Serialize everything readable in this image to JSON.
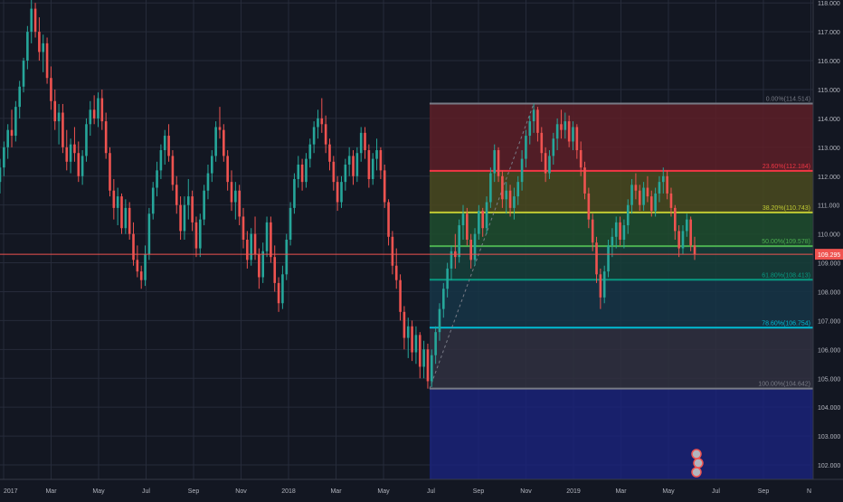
{
  "chart_data": {
    "type": "candlestick",
    "title": "",
    "xlabel": "",
    "ylabel": "",
    "ylim": [
      101.5,
      118.1
    ],
    "x_ticks": [
      "2017",
      "Mar",
      "May",
      "Jul",
      "Sep",
      "Nov",
      "2018",
      "Mar",
      "May",
      "Jul",
      "Sep",
      "Nov",
      "2019",
      "Mar",
      "May",
      "Jul",
      "Sep",
      "N"
    ],
    "y_ticks": [
      "118.000",
      "117.000",
      "116.000",
      "115.000",
      "114.000",
      "113.000",
      "112.000",
      "111.000",
      "110.000",
      "109.000",
      "108.000",
      "107.000",
      "106.000",
      "105.000",
      "104.000",
      "103.000",
      "102.000"
    ],
    "last_price": {
      "value": 109.295,
      "label": "109.295"
    },
    "grid": true,
    "colors": {
      "background": "#131722",
      "grid": "#262b3a",
      "up": "#26a69a",
      "down": "#ef5350",
      "axis_text": "#b2b5be",
      "price_line": "#ef5350"
    },
    "fibonacci": {
      "levels": [
        {
          "label": "0.00%(114.514)",
          "ratio": 0,
          "price": 114.514,
          "color": "#787b86"
        },
        {
          "label": "23.60%(112.184)",
          "ratio": 0.236,
          "price": 112.184,
          "color": "#f23645"
        },
        {
          "label": "38.20%(110.743)",
          "ratio": 0.382,
          "price": 110.743,
          "color": "#c0ca33"
        },
        {
          "label": "50.00%(109.578)",
          "ratio": 0.5,
          "price": 109.578,
          "color": "#4caf50"
        },
        {
          "label": "61.80%(108.413)",
          "ratio": 0.618,
          "price": 108.413,
          "color": "#089981"
        },
        {
          "label": "78.60%(106.754)",
          "ratio": 0.786,
          "price": 106.754,
          "color": "#00bcd4"
        },
        {
          "label": "100.00%(104.642)",
          "ratio": 1,
          "price": 104.642,
          "color": "#787b86"
        }
      ],
      "extension_fill_color": "#1a237e",
      "zone_colors": [
        "#5d1f27",
        "#4a4a1f",
        "#1f4d2e",
        "#163f3a",
        "#163547",
        "#303040"
      ]
    },
    "series": {
      "ohlc": [
        [
          111.8,
          112.6,
          111.4,
          112.3
        ],
        [
          112.3,
          113.2,
          112.0,
          113.0
        ],
        [
          113.0,
          113.8,
          112.6,
          113.6
        ],
        [
          113.6,
          114.3,
          113.0,
          113.4
        ],
        [
          113.4,
          114.6,
          113.2,
          114.4
        ],
        [
          114.4,
          115.3,
          114.0,
          115.1
        ],
        [
          115.1,
          116.1,
          114.9,
          116.0
        ],
        [
          116.0,
          117.2,
          115.7,
          117.0
        ],
        [
          117.0,
          118.1,
          116.6,
          117.8
        ],
        [
          117.8,
          118.0,
          116.8,
          117.0
        ],
        [
          117.0,
          117.5,
          116.0,
          116.3
        ],
        [
          116.3,
          116.9,
          115.6,
          116.6
        ],
        [
          116.6,
          116.8,
          115.2,
          115.4
        ],
        [
          115.4,
          115.8,
          114.3,
          114.6
        ],
        [
          114.6,
          115.0,
          113.6,
          113.9
        ],
        [
          113.9,
          114.5,
          113.1,
          114.2
        ],
        [
          114.2,
          114.5,
          112.8,
          113.0
        ],
        [
          113.0,
          113.6,
          112.2,
          112.5
        ],
        [
          112.5,
          113.3,
          112.1,
          113.1
        ],
        [
          113.1,
          113.7,
          112.5,
          112.8
        ],
        [
          112.8,
          113.2,
          111.8,
          112.0
        ],
        [
          112.0,
          112.9,
          111.7,
          112.7
        ],
        [
          112.7,
          114.0,
          112.5,
          113.8
        ],
        [
          113.8,
          114.6,
          113.4,
          114.3
        ],
        [
          114.3,
          114.8,
          113.8,
          114.0
        ],
        [
          114.0,
          114.9,
          113.7,
          114.7
        ],
        [
          114.7,
          115.0,
          113.6,
          113.9
        ],
        [
          113.9,
          114.2,
          112.6,
          112.8
        ],
        [
          112.8,
          113.0,
          111.3,
          111.5
        ],
        [
          111.5,
          111.9,
          110.5,
          110.9
        ],
        [
          110.9,
          111.6,
          110.3,
          111.3
        ],
        [
          111.3,
          111.4,
          110.0,
          110.2
        ],
        [
          110.2,
          111.2,
          110.0,
          110.9
        ],
        [
          110.9,
          111.1,
          109.8,
          110.0
        ],
        [
          110.0,
          110.4,
          108.9,
          109.1
        ],
        [
          109.1,
          109.6,
          108.5,
          108.7
        ],
        [
          108.7,
          108.9,
          108.1,
          108.4
        ],
        [
          108.4,
          109.6,
          108.2,
          109.3
        ],
        [
          109.3,
          110.9,
          109.1,
          110.7
        ],
        [
          110.7,
          111.8,
          110.5,
          111.6
        ],
        [
          111.6,
          112.5,
          111.3,
          112.2
        ],
        [
          112.2,
          113.1,
          111.9,
          112.9
        ],
        [
          112.9,
          113.6,
          112.4,
          113.4
        ],
        [
          113.4,
          113.8,
          112.5,
          112.7
        ],
        [
          112.7,
          112.9,
          111.5,
          111.7
        ],
        [
          111.7,
          112.0,
          110.7,
          111.0
        ],
        [
          111.0,
          111.3,
          109.8,
          110.1
        ],
        [
          110.1,
          111.3,
          109.8,
          111.0
        ],
        [
          111.0,
          111.9,
          110.5,
          111.3
        ],
        [
          111.3,
          111.5,
          110.1,
          110.4
        ],
        [
          110.4,
          110.6,
          109.2,
          109.5
        ],
        [
          109.5,
          110.7,
          109.2,
          110.5
        ],
        [
          110.5,
          111.7,
          110.3,
          111.5
        ],
        [
          111.5,
          112.4,
          111.2,
          112.1
        ],
        [
          112.1,
          112.9,
          111.8,
          112.7
        ],
        [
          112.7,
          113.9,
          112.5,
          113.7
        ],
        [
          113.7,
          114.4,
          113.3,
          113.6
        ],
        [
          113.6,
          113.8,
          112.5,
          112.7
        ],
        [
          112.7,
          112.9,
          111.5,
          111.8
        ],
        [
          111.8,
          112.2,
          110.8,
          111.1
        ],
        [
          111.1,
          111.8,
          110.5,
          111.5
        ],
        [
          111.5,
          111.7,
          110.3,
          110.6
        ],
        [
          110.6,
          110.9,
          109.5,
          109.8
        ],
        [
          109.8,
          110.1,
          108.8,
          109.1
        ],
        [
          109.1,
          110.2,
          108.9,
          110.0
        ],
        [
          110.0,
          110.6,
          109.1,
          109.3
        ],
        [
          109.3,
          109.5,
          108.1,
          108.5
        ],
        [
          108.5,
          109.7,
          108.3,
          109.4
        ],
        [
          109.4,
          110.6,
          109.2,
          110.4
        ],
        [
          110.4,
          110.6,
          109.0,
          109.2
        ],
        [
          109.2,
          109.6,
          108.0,
          108.3
        ],
        [
          108.3,
          108.5,
          107.3,
          107.6
        ],
        [
          107.6,
          108.9,
          107.4,
          108.6
        ],
        [
          108.6,
          110.0,
          108.4,
          109.8
        ],
        [
          109.8,
          111.1,
          109.6,
          110.9
        ],
        [
          110.9,
          112.1,
          110.7,
          111.9
        ],
        [
          111.9,
          112.7,
          111.6,
          112.4
        ],
        [
          112.4,
          112.6,
          111.5,
          111.8
        ],
        [
          111.8,
          112.8,
          111.6,
          112.6
        ],
        [
          112.6,
          113.3,
          112.3,
          113.1
        ],
        [
          113.1,
          113.9,
          112.8,
          113.7
        ],
        [
          113.7,
          114.3,
          113.3,
          114.0
        ],
        [
          114.0,
          114.7,
          113.5,
          113.8
        ],
        [
          113.8,
          114.1,
          112.8,
          113.1
        ],
        [
          113.1,
          113.3,
          112.2,
          112.5
        ],
        [
          112.5,
          112.7,
          111.5,
          111.8
        ],
        [
          111.8,
          112.0,
          110.8,
          111.1
        ],
        [
          111.1,
          112.0,
          110.9,
          111.8
        ],
        [
          111.8,
          112.6,
          111.5,
          112.4
        ],
        [
          112.4,
          113.0,
          112.0,
          112.7
        ],
        [
          112.7,
          112.9,
          111.7,
          112.0
        ],
        [
          112.0,
          113.0,
          111.8,
          112.8
        ],
        [
          112.8,
          113.7,
          112.5,
          113.5
        ],
        [
          113.5,
          113.7,
          112.6,
          112.9
        ],
        [
          112.9,
          113.1,
          111.6,
          111.9
        ],
        [
          111.9,
          112.8,
          111.7,
          112.6
        ],
        [
          112.6,
          113.3,
          112.2,
          112.9
        ],
        [
          112.9,
          113.0,
          111.9,
          112.2
        ],
        [
          112.2,
          112.4,
          110.9,
          111.1
        ],
        [
          111.1,
          111.2,
          109.6,
          109.9
        ],
        [
          109.9,
          110.1,
          108.6,
          108.9
        ],
        [
          108.9,
          109.5,
          108.1,
          108.4
        ],
        [
          108.4,
          108.6,
          107.0,
          107.3
        ],
        [
          107.3,
          107.5,
          106.0,
          106.4
        ],
        [
          106.4,
          107.1,
          105.7,
          106.8
        ],
        [
          106.8,
          107.0,
          105.6,
          105.9
        ],
        [
          105.9,
          106.8,
          105.5,
          106.5
        ],
        [
          106.5,
          106.6,
          105.0,
          105.4
        ],
        [
          105.4,
          106.3,
          105.0,
          106.0
        ],
        [
          106.0,
          106.2,
          104.642,
          104.9
        ],
        [
          104.9,
          106.0,
          104.7,
          105.8
        ],
        [
          105.8,
          106.8,
          105.5,
          106.6
        ],
        [
          106.6,
          107.6,
          106.3,
          107.4
        ],
        [
          107.4,
          108.3,
          107.1,
          108.1
        ],
        [
          108.1,
          109.0,
          107.8,
          108.8
        ],
        [
          108.8,
          109.6,
          108.4,
          109.4
        ],
        [
          109.4,
          110.0,
          108.8,
          109.2
        ],
        [
          109.2,
          110.5,
          109.0,
          110.3
        ],
        [
          110.3,
          111.0,
          109.8,
          110.7
        ],
        [
          110.7,
          110.9,
          109.6,
          109.8
        ],
        [
          109.8,
          110.0,
          108.8,
          109.1
        ],
        [
          109.1,
          110.2,
          108.9,
          110.0
        ],
        [
          110.0,
          111.0,
          109.8,
          110.8
        ],
        [
          110.8,
          110.9,
          109.9,
          110.2
        ],
        [
          110.2,
          111.3,
          110.0,
          111.1
        ],
        [
          111.1,
          112.3,
          110.9,
          112.1
        ],
        [
          112.1,
          113.1,
          111.8,
          112.9
        ],
        [
          112.9,
          113.0,
          111.8,
          112.0
        ],
        [
          112.0,
          112.2,
          110.9,
          111.2
        ],
        [
          111.2,
          111.8,
          110.7,
          111.5
        ],
        [
          111.5,
          111.7,
          110.6,
          110.9
        ],
        [
          110.9,
          111.6,
          110.5,
          111.3
        ],
        [
          111.3,
          112.0,
          111.0,
          111.8
        ],
        [
          111.8,
          112.9,
          111.5,
          112.6
        ],
        [
          112.6,
          113.6,
          112.3,
          113.4
        ],
        [
          113.4,
          114.1,
          113.1,
          113.9
        ],
        [
          113.9,
          114.514,
          113.5,
          114.3
        ],
        [
          114.3,
          114.4,
          113.2,
          113.5
        ],
        [
          113.5,
          113.7,
          112.5,
          112.8
        ],
        [
          112.8,
          113.0,
          111.8,
          112.1
        ],
        [
          112.1,
          112.9,
          111.9,
          112.7
        ],
        [
          112.7,
          113.5,
          112.4,
          113.3
        ],
        [
          113.3,
          114.0,
          112.9,
          113.8
        ],
        [
          113.8,
          114.3,
          113.3,
          113.6
        ],
        [
          113.6,
          114.2,
          113.3,
          113.9
        ],
        [
          113.9,
          114.1,
          113.0,
          113.2
        ],
        [
          113.2,
          113.9,
          112.9,
          113.7
        ],
        [
          113.7,
          113.8,
          112.6,
          112.9
        ],
        [
          112.9,
          113.2,
          112.0,
          112.3
        ],
        [
          112.3,
          112.5,
          111.2,
          111.4
        ],
        [
          111.4,
          111.6,
          110.2,
          110.5
        ],
        [
          110.5,
          110.7,
          109.4,
          109.7
        ],
        [
          109.7,
          109.9,
          108.3,
          108.6
        ],
        [
          108.6,
          108.8,
          107.4,
          107.8
        ],
        [
          107.8,
          108.9,
          107.6,
          108.7
        ],
        [
          108.7,
          109.8,
          108.5,
          109.6
        ],
        [
          109.6,
          110.2,
          109.2,
          109.9
        ],
        [
          109.9,
          110.6,
          109.5,
          110.4
        ],
        [
          110.4,
          110.6,
          109.6,
          109.8
        ],
        [
          109.8,
          110.5,
          109.5,
          110.3
        ],
        [
          110.3,
          111.2,
          110.0,
          111.0
        ],
        [
          111.0,
          111.9,
          110.7,
          111.7
        ],
        [
          111.7,
          112.1,
          111.2,
          111.5
        ],
        [
          111.5,
          111.7,
          110.8,
          111.0
        ],
        [
          111.0,
          111.8,
          110.8,
          111.6
        ],
        [
          111.6,
          112.0,
          111.1,
          111.3
        ],
        [
          111.3,
          111.5,
          110.6,
          110.8
        ],
        [
          110.8,
          111.6,
          110.6,
          111.4
        ],
        [
          111.4,
          112.0,
          111.1,
          111.8
        ],
        [
          111.8,
          112.3,
          111.4,
          112.0
        ],
        [
          112.0,
          112.2,
          111.2,
          111.4
        ],
        [
          111.4,
          111.6,
          110.6,
          110.9
        ],
        [
          110.9,
          111.0,
          109.8,
          110.1
        ],
        [
          110.1,
          110.3,
          109.2,
          109.5
        ],
        [
          109.5,
          110.3,
          109.3,
          110.1
        ],
        [
          110.1,
          110.7,
          109.9,
          110.5
        ],
        [
          110.5,
          110.6,
          109.4,
          109.6
        ],
        [
          109.6,
          109.9,
          109.1,
          109.3
        ]
      ]
    }
  }
}
